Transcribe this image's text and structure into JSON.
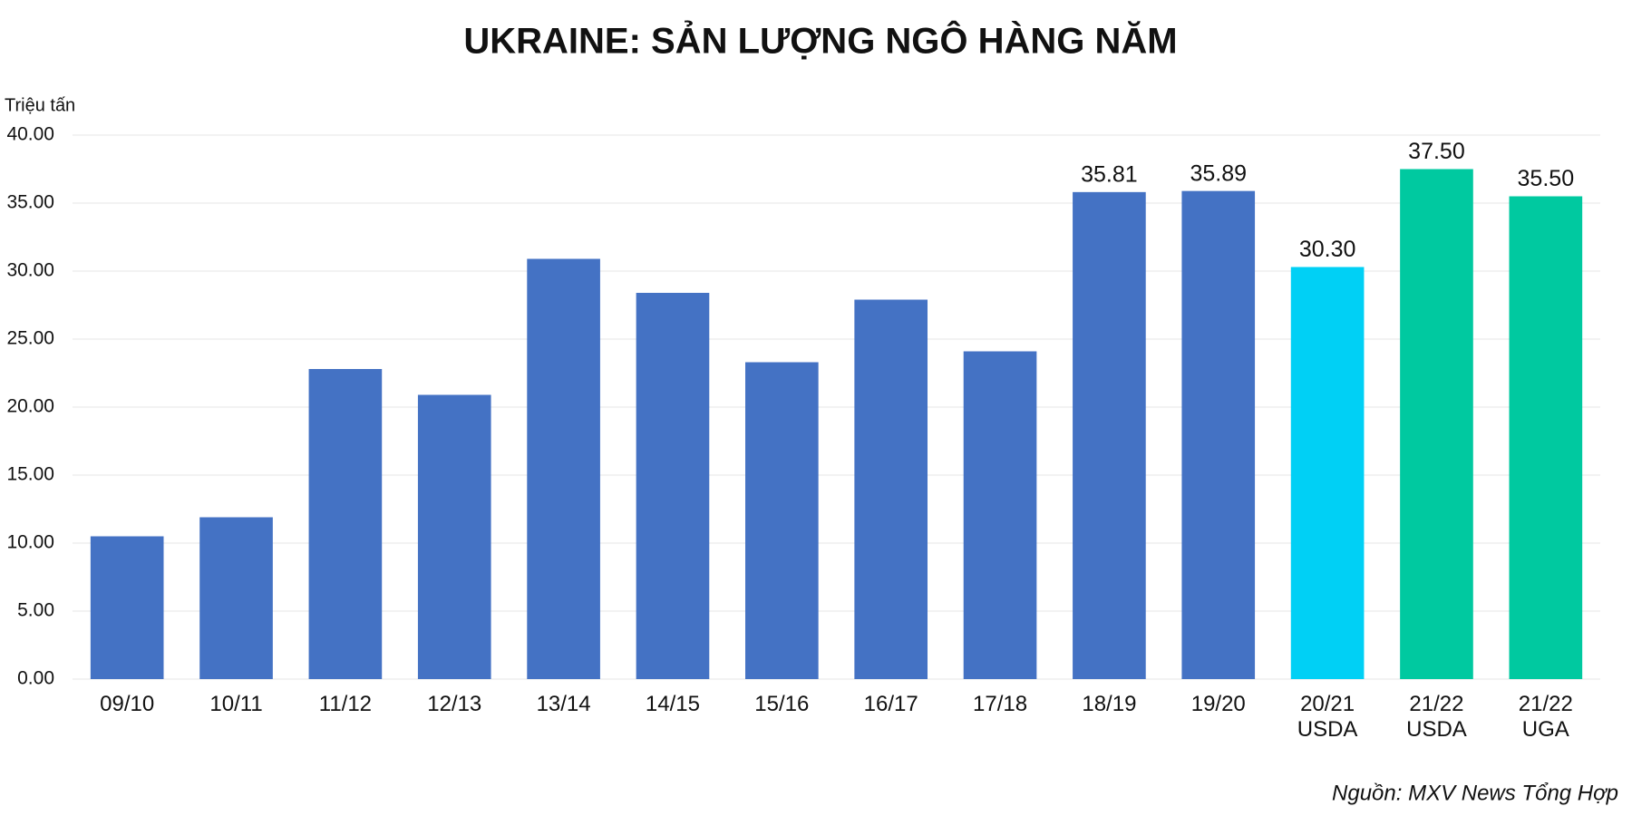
{
  "chart_data": {
    "type": "bar",
    "title": "UKRAINE: SẢN LƯỢNG NGÔ HÀNG NĂM",
    "y_label": "Triệu tấn",
    "source": "Nguồn: MXV News Tổng Hợp",
    "categories": [
      "09/10",
      "10/11",
      "11/12",
      "12/13",
      "13/14",
      "14/15",
      "15/16",
      "16/17",
      "17/18",
      "18/19",
      "19/20",
      "20/21\nUSDA",
      "21/22\nUSDA",
      "21/22\nUGA"
    ],
    "values": [
      10.5,
      11.9,
      22.8,
      20.9,
      30.9,
      28.4,
      23.3,
      27.9,
      24.1,
      35.81,
      35.89,
      30.3,
      37.5,
      35.5
    ],
    "value_labels": [
      null,
      null,
      null,
      null,
      null,
      null,
      null,
      null,
      null,
      "35.81",
      "35.89",
      "30.30",
      "37.50",
      "35.50"
    ],
    "colors": [
      "#4472c4",
      "#4472c4",
      "#4472c4",
      "#4472c4",
      "#4472c4",
      "#4472c4",
      "#4472c4",
      "#4472c4",
      "#4472c4",
      "#4472c4",
      "#4472c4",
      "#00d0f5",
      "#00c9a0",
      "#00c9a0"
    ],
    "ylim": [
      0,
      40
    ],
    "yticks": [
      {
        "value": 0,
        "label": "0.00"
      },
      {
        "value": 5,
        "label": "5.00"
      },
      {
        "value": 10,
        "label": "10.00"
      },
      {
        "value": 15,
        "label": "15.00"
      },
      {
        "value": 20,
        "label": "20.00"
      },
      {
        "value": 25,
        "label": "25.00"
      },
      {
        "value": 30,
        "label": "30.00"
      },
      {
        "value": 35,
        "label": "35.00"
      },
      {
        "value": 40,
        "label": "40.00"
      }
    ],
    "grid": true
  }
}
